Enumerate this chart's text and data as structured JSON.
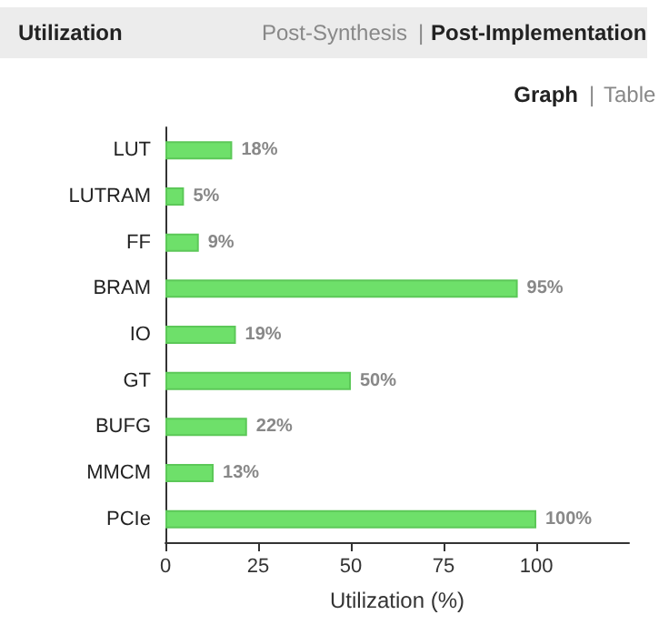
{
  "chart_data": {
    "type": "bar",
    "orientation": "horizontal",
    "title": "Utilization",
    "xlabel": "Utilization (%)",
    "annotations": [
      "Post-Synthesis",
      "|",
      "Post-Implementation",
      "Graph",
      "|",
      "Table"
    ],
    "categories": [
      "LUT",
      "LUTRAM",
      "FF",
      "BRAM",
      "IO",
      "GT",
      "BUFG",
      "MMCM",
      "PCIe"
    ],
    "values": [
      18,
      5,
      9,
      95,
      19,
      50,
      22,
      13,
      100
    ],
    "value_labels": [
      "18%",
      "5%",
      "9%",
      "95%",
      "19%",
      "50%",
      "22%",
      "13%",
      "100%"
    ],
    "color": "#6ee06a",
    "xlim": [
      0,
      125
    ],
    "xticks": [
      0,
      25,
      50,
      75,
      100
    ],
    "grid": false
  }
}
